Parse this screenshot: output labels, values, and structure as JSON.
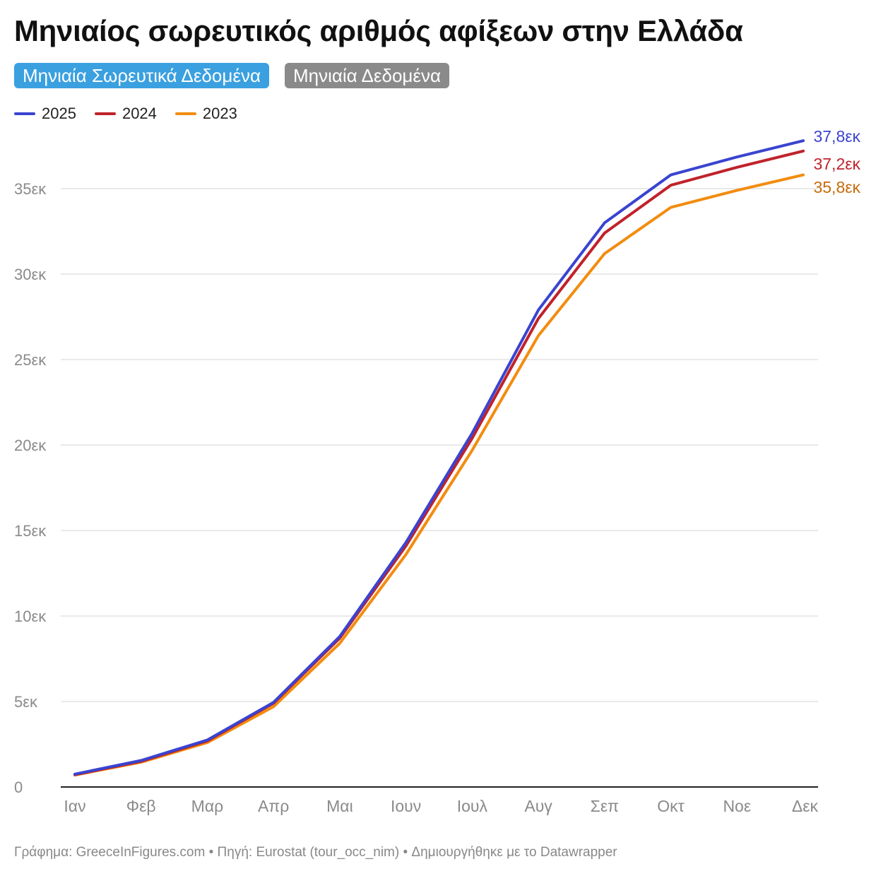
{
  "title": "Μηνιαίος σωρευτικός αριθμός αφίξεων στην Ελλάδα",
  "toggles": {
    "cumulative": "Μηνιαία Σωρευτικά Δεδομένα",
    "monthly": "Μηνιαία Δεδομένα"
  },
  "footer": {
    "chart": "Γράφημα: GreeceInFigures.com",
    "separator": "•",
    "source": "Πηγή: Eurostat (tour_occ_nim)",
    "made": "Δημιουργήθηκε με το Datawrapper"
  },
  "chart_data": {
    "type": "line",
    "categories": [
      "Ιαν",
      "Φεβ",
      "Μαρ",
      "Απρ",
      "Μαι",
      "Ιουν",
      "Ιουλ",
      "Αυγ",
      "Σεπ",
      "Οκτ",
      "Νοε",
      "Δεκ"
    ],
    "series": [
      {
        "name": "2025",
        "color": "#3a44d0",
        "values": [
          0.75,
          1.55,
          2.75,
          4.95,
          8.8,
          14.3,
          20.7,
          27.9,
          33.0,
          35.8,
          36.85,
          37.8
        ],
        "end_label": "37,8εκ",
        "label_color": "#3a44d0"
      },
      {
        "name": "2024",
        "color": "#c0222a",
        "values": [
          0.72,
          1.5,
          2.7,
          4.9,
          8.7,
          14.1,
          20.4,
          27.4,
          32.4,
          35.2,
          36.25,
          37.2
        ],
        "end_label": "37,2εκ",
        "label_color": "#c0222a"
      },
      {
        "name": "2023",
        "color": "#f28c0f",
        "values": [
          0.7,
          1.45,
          2.6,
          4.7,
          8.4,
          13.6,
          19.7,
          26.4,
          31.2,
          33.9,
          34.9,
          35.8
        ],
        "end_label": "35,8εκ",
        "label_color": "#c86a0a"
      }
    ],
    "y_ticks": [
      {
        "value": 0,
        "label": "0"
      },
      {
        "value": 5,
        "label": "5εκ"
      },
      {
        "value": 10,
        "label": "10εκ"
      },
      {
        "value": 15,
        "label": "15εκ"
      },
      {
        "value": 20,
        "label": "20εκ"
      },
      {
        "value": 25,
        "label": "25εκ"
      },
      {
        "value": 30,
        "label": "30εκ"
      },
      {
        "value": 35,
        "label": "35εκ"
      }
    ],
    "ylim": [
      0,
      35
    ],
    "grid": true,
    "legend_position": "top-left"
  }
}
